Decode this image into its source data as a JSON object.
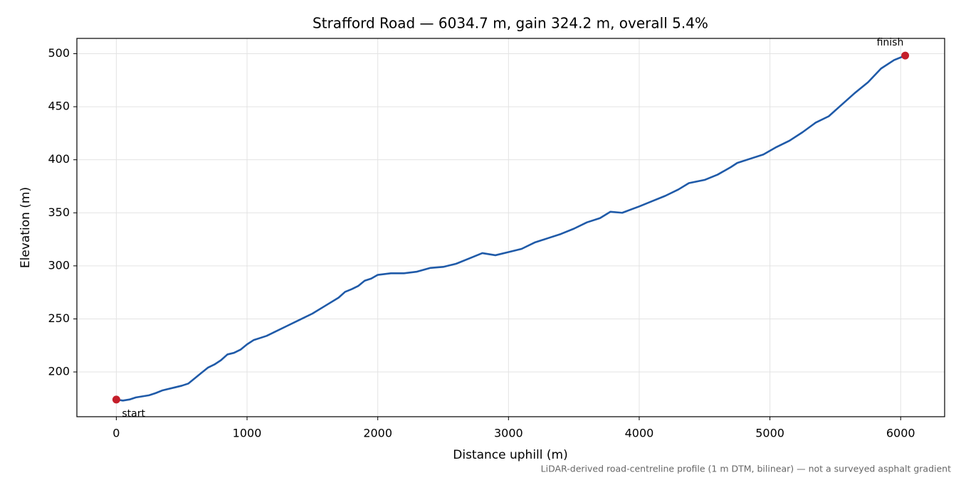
{
  "chart_data": {
    "type": "line",
    "title": "Strafford Road — 6034.7 m, gain 324.2 m, overall 5.4%",
    "xlabel": "Distance uphill (m)",
    "ylabel": "Elevation (m)",
    "footnote": "LiDAR-derived road-centreline profile (1 m DTM, bilinear) — not a surveyed asphalt gradient",
    "annotations": [
      "start",
      "finish"
    ],
    "marker_color": "#c41e2a",
    "xlim": [
      -301.7,
      6336.4
    ],
    "ylim": [
      157.8,
      514.4
    ],
    "xticks": [
      0,
      1000,
      2000,
      3000,
      4000,
      5000,
      6000
    ],
    "yticks": [
      200,
      250,
      300,
      350,
      400,
      450,
      500
    ],
    "grid": true,
    "series": [
      {
        "name": "Elevation",
        "color": "#1f5aa8",
        "x": [
          0,
          50,
          100,
          150,
          200,
          250,
          300,
          350,
          400,
          450,
          500,
          550,
          600,
          650,
          700,
          750,
          800,
          850,
          900,
          950,
          1000,
          1050,
          1100,
          1150,
          1200,
          1300,
          1400,
          1500,
          1600,
          1700,
          1750,
          1800,
          1850,
          1900,
          1950,
          2000,
          2100,
          2200,
          2300,
          2400,
          2500,
          2600,
          2700,
          2800,
          2900,
          3000,
          3100,
          3200,
          3300,
          3400,
          3500,
          3600,
          3700,
          3780,
          3870,
          4000,
          4100,
          4200,
          4300,
          4380,
          4500,
          4600,
          4700,
          4750,
          4850,
          4950,
          5050,
          5150,
          5250,
          5350,
          5450,
          5550,
          5650,
          5750,
          5850,
          5950,
          6034.7
        ],
        "values": [
          174,
          173,
          174,
          176,
          177,
          178,
          180,
          182.5,
          184,
          185.5,
          187,
          189,
          194,
          199,
          204,
          207,
          211,
          216.5,
          218,
          221,
          226,
          230,
          232,
          234,
          237,
          243,
          249,
          255,
          262.5,
          270,
          275.5,
          278,
          281,
          286,
          288,
          291.5,
          293,
          293,
          294.5,
          298,
          299,
          302,
          307,
          312,
          310,
          313,
          316,
          322,
          326,
          330,
          335,
          341,
          345,
          351,
          350,
          356,
          361,
          366,
          372,
          378,
          381,
          386,
          393,
          397,
          401,
          405,
          412,
          418,
          426,
          435,
          441,
          452,
          463,
          473,
          486,
          494,
          498.2
        ]
      }
    ]
  }
}
